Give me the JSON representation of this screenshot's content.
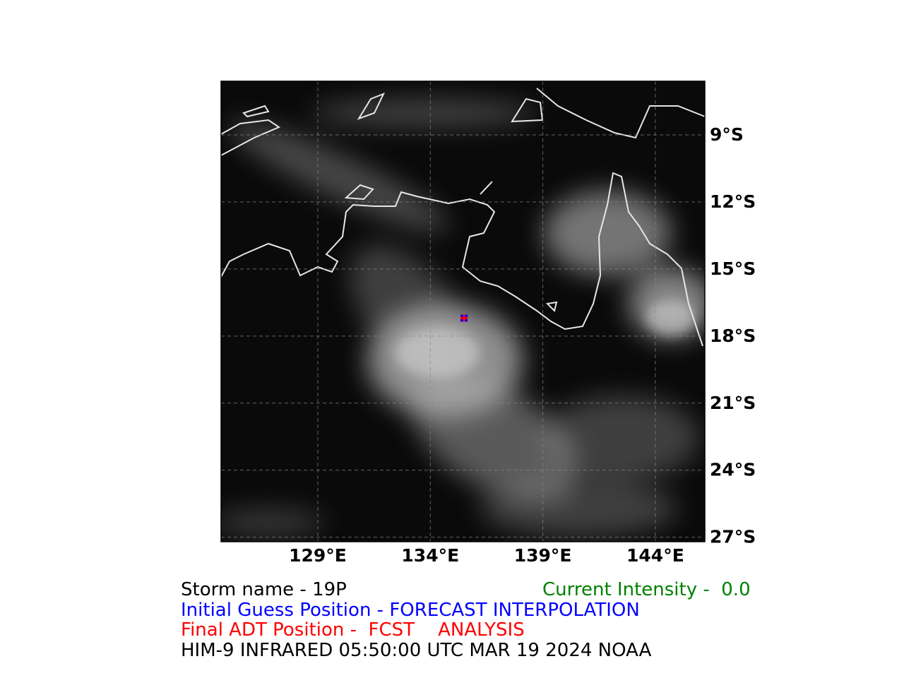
{
  "map": {
    "xlim": [
      124.7,
      146.2
    ],
    "ylim": [
      -27.2,
      -6.6
    ],
    "xticks": [
      {
        "value": 129,
        "label": "129°E"
      },
      {
        "value": 134,
        "label": "134°E"
      },
      {
        "value": 139,
        "label": "139°E"
      },
      {
        "value": 144,
        "label": "144°E"
      }
    ],
    "yticks": [
      {
        "value": -9,
        "label": "9°S"
      },
      {
        "value": -12,
        "label": "12°S"
      },
      {
        "value": -15,
        "label": "15°S"
      },
      {
        "value": -18,
        "label": "18°S"
      },
      {
        "value": -21,
        "label": "21°S"
      },
      {
        "value": -24,
        "label": "24°S"
      },
      {
        "value": -27,
        "label": "27°S"
      }
    ],
    "initial_guess": {
      "lon": 135.5,
      "lat": -17.2,
      "color": "#0000ff"
    },
    "final_position": {
      "lon": 135.5,
      "lat": -17.2,
      "color": "#ff0000"
    }
  },
  "caption": {
    "storm_name": "Storm name - 19P",
    "current_intensity": "Current Intensity -  0.0",
    "initial_guess": "Initial Guess Position - FORECAST INTERPOLATION",
    "final_position": "Final ADT Position -  FCST    ANALYSIS",
    "source": "HIM-9 INFRARED 05:50:00 UTC MAR 19 2024 NOAA"
  }
}
